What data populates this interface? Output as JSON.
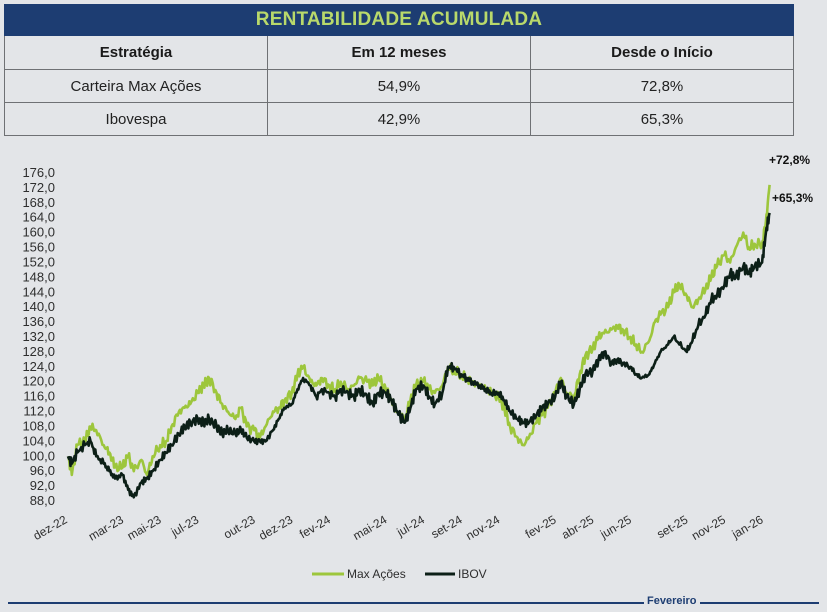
{
  "table": {
    "title": "RENTABILIDADE ACUMULADA",
    "headers": [
      "Estratégia",
      "Em 12 meses",
      "Desde o Início"
    ],
    "rows": [
      [
        "Carteira Max Ações",
        "54,9%",
        "72,8%"
      ],
      [
        "Ibovespa",
        "42,9%",
        "65,3%"
      ]
    ]
  },
  "chart_data": {
    "type": "line",
    "title": "",
    "xlabel": "",
    "ylabel": "",
    "ylim": [
      88.0,
      176.0
    ],
    "yticks": [
      "88,0",
      "92,0",
      "96,0",
      "100,0",
      "104,0",
      "108,0",
      "112,0",
      "116,0",
      "120,0",
      "124,0",
      "128,0",
      "132,0",
      "136,0",
      "140,0",
      "144,0",
      "148,0",
      "152,0",
      "156,0",
      "160,0",
      "164,0",
      "168,0",
      "172,0",
      "176,0"
    ],
    "xticks": [
      "dez-22",
      "mar-23",
      "mai-23",
      "jul-23",
      "out-23",
      "dez-23",
      "fev-24",
      "mai-24",
      "jul-24",
      "set-24",
      "nov-24",
      "fev-25",
      "abr-25",
      "jun-25",
      "set-25",
      "nov-25",
      "jan-26"
    ],
    "x_months": [
      0,
      3,
      5,
      7,
      10,
      12,
      14,
      17,
      19,
      21,
      23,
      26,
      28,
      30,
      33,
      35,
      37
    ],
    "legend_position": "bottom-center",
    "annotations": [
      "+72,8%",
      "+65,3%"
    ],
    "series": [
      {
        "name": "Max Ações",
        "color": "#9dc63c",
        "points": [
          [
            0,
            100
          ],
          [
            0.2,
            95
          ],
          [
            0.5,
            103
          ],
          [
            0.9,
            104
          ],
          [
            1.2,
            108
          ],
          [
            1.5,
            107
          ],
          [
            1.9,
            103
          ],
          [
            2.2,
            101
          ],
          [
            2.5,
            97
          ],
          [
            2.9,
            97
          ],
          [
            3.2,
            100
          ],
          [
            3.5,
            96
          ],
          [
            3.9,
            99
          ],
          [
            4.2,
            95
          ],
          [
            4.5,
            100
          ],
          [
            4.9,
            103
          ],
          [
            5.2,
            104
          ],
          [
            5.5,
            108
          ],
          [
            5.9,
            112
          ],
          [
            6.2,
            113
          ],
          [
            6.5,
            114
          ],
          [
            6.9,
            117
          ],
          [
            7.2,
            119
          ],
          [
            7.5,
            121
          ],
          [
            7.9,
            117
          ],
          [
            8.2,
            114
          ],
          [
            8.5,
            112
          ],
          [
            8.9,
            110
          ],
          [
            9.2,
            113
          ],
          [
            9.5,
            108
          ],
          [
            9.9,
            107
          ],
          [
            10.2,
            105
          ],
          [
            10.5,
            108
          ],
          [
            10.9,
            112
          ],
          [
            11.2,
            113
          ],
          [
            11.5,
            115
          ],
          [
            11.9,
            117
          ],
          [
            12.2,
            122
          ],
          [
            12.5,
            124
          ],
          [
            12.9,
            120
          ],
          [
            13.2,
            119
          ],
          [
            13.5,
            121
          ],
          [
            13.9,
            119
          ],
          [
            14.2,
            118
          ],
          [
            14.5,
            120
          ],
          [
            14.9,
            118
          ],
          [
            15.2,
            119
          ],
          [
            15.5,
            121
          ],
          [
            15.9,
            120
          ],
          [
            16.2,
            119
          ],
          [
            16.5,
            121
          ],
          [
            16.9,
            118
          ],
          [
            17.2,
            115
          ],
          [
            17.5,
            112
          ],
          [
            17.9,
            110
          ],
          [
            18.2,
            115
          ],
          [
            18.5,
            119
          ],
          [
            18.9,
            120
          ],
          [
            19.2,
            118
          ],
          [
            19.5,
            117
          ],
          [
            19.9,
            119
          ],
          [
            20.2,
            124
          ],
          [
            20.5,
            123
          ],
          [
            20.9,
            122
          ],
          [
            21.2,
            121
          ],
          [
            21.5,
            120
          ],
          [
            21.9,
            119
          ],
          [
            22.2,
            118
          ],
          [
            22.5,
            117
          ],
          [
            22.9,
            116
          ],
          [
            23.2,
            113
          ],
          [
            23.5,
            108
          ],
          [
            23.9,
            105
          ],
          [
            24.2,
            103
          ],
          [
            24.5,
            105
          ],
          [
            24.9,
            109
          ],
          [
            25.2,
            111
          ],
          [
            25.5,
            113
          ],
          [
            25.9,
            117
          ],
          [
            26.2,
            121
          ],
          [
            26.5,
            117
          ],
          [
            26.9,
            116
          ],
          [
            27.2,
            122
          ],
          [
            27.5,
            127
          ],
          [
            27.9,
            129
          ],
          [
            28.2,
            132
          ],
          [
            28.5,
            133
          ],
          [
            28.9,
            134
          ],
          [
            29.2,
            135
          ],
          [
            29.5,
            134
          ],
          [
            29.9,
            132
          ],
          [
            30.2,
            130
          ],
          [
            30.5,
            128
          ],
          [
            30.9,
            131
          ],
          [
            31.2,
            136
          ],
          [
            31.5,
            138
          ],
          [
            31.9,
            140
          ],
          [
            32.2,
            144
          ],
          [
            32.5,
            146
          ],
          [
            32.9,
            143
          ],
          [
            33.2,
            140
          ],
          [
            33.5,
            142
          ],
          [
            33.9,
            145
          ],
          [
            34.2,
            148
          ],
          [
            34.5,
            151
          ],
          [
            34.9,
            154
          ],
          [
            35.2,
            152
          ],
          [
            35.5,
            156
          ],
          [
            35.9,
            160
          ],
          [
            36.2,
            156
          ],
          [
            36.5,
            157
          ],
          [
            36.9,
            157
          ],
          [
            37.1,
            163
          ],
          [
            37.3,
            172.8
          ]
        ]
      },
      {
        "name": "IBOV",
        "color": "#0c1f17",
        "points": [
          [
            0,
            100
          ],
          [
            0.2,
            98
          ],
          [
            0.5,
            101
          ],
          [
            0.9,
            103
          ],
          [
            1.2,
            104
          ],
          [
            1.5,
            100
          ],
          [
            1.9,
            98
          ],
          [
            2.2,
            96
          ],
          [
            2.5,
            94
          ],
          [
            2.9,
            95
          ],
          [
            3.2,
            91
          ],
          [
            3.5,
            89
          ],
          [
            3.9,
            93
          ],
          [
            4.2,
            94
          ],
          [
            4.5,
            96
          ],
          [
            4.9,
            99
          ],
          [
            5.2,
            101
          ],
          [
            5.5,
            103
          ],
          [
            5.9,
            106
          ],
          [
            6.2,
            108
          ],
          [
            6.5,
            109
          ],
          [
            6.9,
            110
          ],
          [
            7.2,
            109
          ],
          [
            7.5,
            110
          ],
          [
            7.9,
            108
          ],
          [
            8.2,
            106
          ],
          [
            8.5,
            107
          ],
          [
            8.9,
            106
          ],
          [
            9.2,
            107
          ],
          [
            9.5,
            105
          ],
          [
            9.9,
            104
          ],
          [
            10.2,
            104
          ],
          [
            10.5,
            104
          ],
          [
            10.9,
            107
          ],
          [
            11.2,
            110
          ],
          [
            11.5,
            113
          ],
          [
            11.9,
            114
          ],
          [
            12.2,
            118
          ],
          [
            12.5,
            121
          ],
          [
            12.9,
            119
          ],
          [
            13.2,
            116
          ],
          [
            13.5,
            118
          ],
          [
            13.9,
            117
          ],
          [
            14.2,
            116
          ],
          [
            14.5,
            118
          ],
          [
            14.9,
            117
          ],
          [
            15.2,
            116
          ],
          [
            15.5,
            118
          ],
          [
            15.9,
            116
          ],
          [
            16.2,
            114
          ],
          [
            16.5,
            117
          ],
          [
            16.9,
            117
          ],
          [
            17.2,
            115
          ],
          [
            17.5,
            112
          ],
          [
            17.9,
            109
          ],
          [
            18.2,
            113
          ],
          [
            18.5,
            118
          ],
          [
            18.9,
            119
          ],
          [
            19.2,
            116
          ],
          [
            19.5,
            114
          ],
          [
            19.9,
            117
          ],
          [
            20.2,
            124
          ],
          [
            20.5,
            124
          ],
          [
            20.9,
            122
          ],
          [
            21.2,
            121
          ],
          [
            21.5,
            120
          ],
          [
            21.9,
            119
          ],
          [
            22.2,
            118
          ],
          [
            22.5,
            117
          ],
          [
            22.9,
            117
          ],
          [
            23.2,
            115
          ],
          [
            23.5,
            112
          ],
          [
            23.9,
            110
          ],
          [
            24.2,
            109
          ],
          [
            24.5,
            109
          ],
          [
            24.9,
            111
          ],
          [
            25.2,
            113
          ],
          [
            25.5,
            114
          ],
          [
            25.9,
            116
          ],
          [
            26.2,
            120
          ],
          [
            26.5,
            116
          ],
          [
            26.9,
            114
          ],
          [
            27.2,
            118
          ],
          [
            27.5,
            122
          ],
          [
            27.9,
            123
          ],
          [
            28.2,
            126
          ],
          [
            28.5,
            128
          ],
          [
            28.9,
            125
          ],
          [
            29.2,
            126
          ],
          [
            29.5,
            125
          ],
          [
            29.9,
            124
          ],
          [
            30.2,
            122
          ],
          [
            30.5,
            121
          ],
          [
            30.9,
            122
          ],
          [
            31.2,
            125
          ],
          [
            31.5,
            128
          ],
          [
            31.9,
            130
          ],
          [
            32.2,
            132
          ],
          [
            32.5,
            130
          ],
          [
            32.9,
            128
          ],
          [
            33.2,
            131
          ],
          [
            33.5,
            135
          ],
          [
            33.9,
            138
          ],
          [
            34.2,
            142
          ],
          [
            34.5,
            143
          ],
          [
            34.9,
            146
          ],
          [
            35.2,
            149
          ],
          [
            35.5,
            148
          ],
          [
            35.9,
            151
          ],
          [
            36.2,
            149
          ],
          [
            36.5,
            151
          ],
          [
            36.9,
            152
          ],
          [
            37.1,
            160
          ],
          [
            37.3,
            165.3
          ]
        ]
      }
    ]
  },
  "footer": {
    "label": "Fevereiro"
  }
}
